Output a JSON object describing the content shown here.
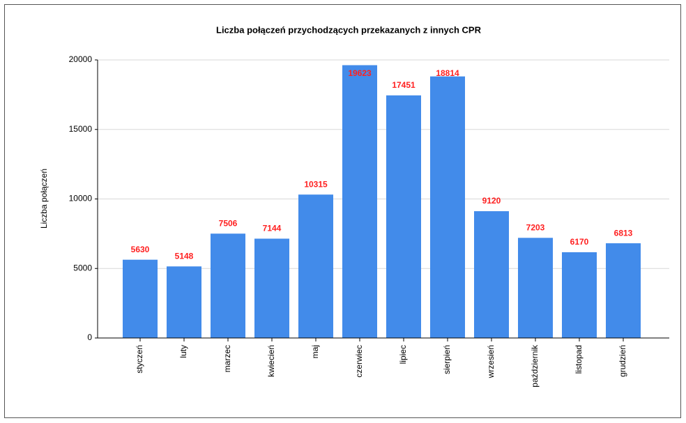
{
  "chart_data": {
    "type": "bar",
    "title": "Liczba połączeń przychodzących przekazanych  z innych CPR",
    "y_label": "Liczba połączeń",
    "categories": [
      "styczeń",
      "luty",
      "marzec",
      "kwiecień",
      "maj",
      "czerwiec",
      "lipiec",
      "sierpień",
      "wrzesień",
      "październik",
      "listopad",
      "grudzień"
    ],
    "values": [
      5630,
      5148,
      7506,
      7144,
      10315,
      19623,
      17451,
      18814,
      9120,
      7203,
      6170,
      6813
    ],
    "color": "#428bea",
    "label_color": "#ff2020",
    "ylim": [
      0,
      20000
    ],
    "yticks": [
      0,
      5000,
      10000,
      15000,
      20000
    ],
    "grid": true
  }
}
